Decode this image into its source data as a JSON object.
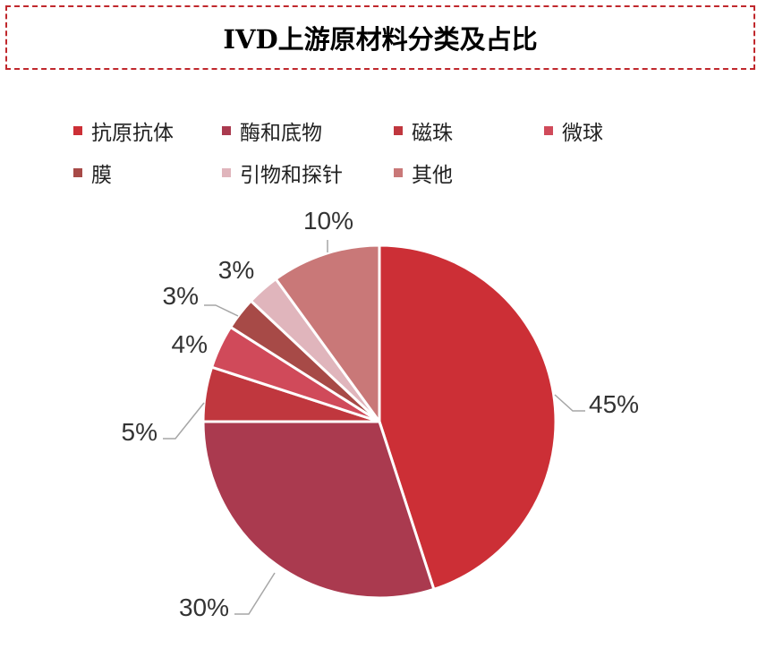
{
  "chart_data": {
    "type": "pie",
    "title": "IVD上游原材料分类及占比",
    "categories": [
      "抗原抗体",
      "酶和底物",
      "磁珠",
      "微球",
      "膜",
      "引物和探针",
      "其他"
    ],
    "values": [
      45,
      30,
      5,
      4,
      3,
      3,
      10
    ],
    "labels": [
      "45%",
      "30%",
      "5%",
      "4%",
      "3%",
      "3%",
      "10%"
    ],
    "colors": [
      "#cc2f36",
      "#aa3a4f",
      "#c0373e",
      "#d04a5a",
      "#a74a47",
      "#e0b5bc",
      "#c97878"
    ],
    "legend_position": "top"
  }
}
